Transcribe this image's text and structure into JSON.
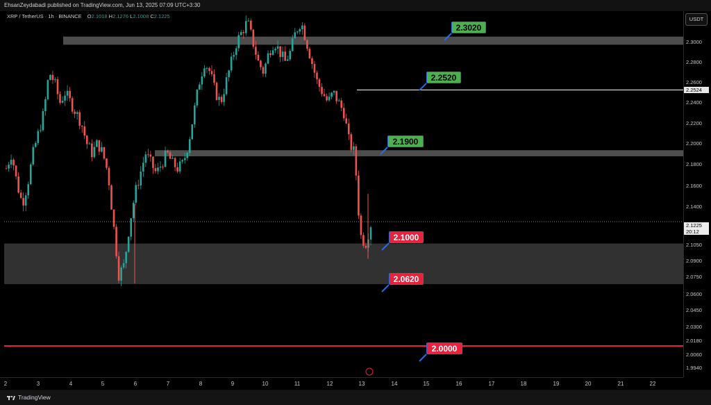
{
  "header": {
    "publisher_text": "EhsanZeydabadi published on TradingView.com, Jun 13, 2025 07:09 UTC+3:30"
  },
  "symbol": {
    "name": "XRP / TetherUS · 1h · BINANCE",
    "o_label": "O",
    "o": "2.1018",
    "h_label": "H",
    "h": "2.1276",
    "l_label": "L",
    "l": "2.1008",
    "c_label": "C",
    "c": "2.1225"
  },
  "price_scale": {
    "currency": "USDT",
    "ticks": [
      "2.3000",
      "2.2800",
      "2.2600",
      "2.2400",
      "2.2200",
      "2.2000",
      "2.1800",
      "2.1600",
      "2.1400",
      "2.1200",
      "2.1050",
      "2.0900",
      "2.0750",
      "2.0600",
      "2.0450",
      "2.0300",
      "2.0180",
      "2.0060",
      "1.9940"
    ],
    "line_tag": "2.2524",
    "last_price": "2.1225",
    "countdown": "20:12"
  },
  "time_scale": {
    "labels": [
      "2",
      "3",
      "4",
      "5",
      "6",
      "7",
      "8",
      "9",
      "10",
      "11",
      "12",
      "13",
      "14",
      "15",
      "16",
      "17",
      "18",
      "19",
      "20",
      "21",
      "22"
    ]
  },
  "footer": {
    "brand": "TradingView"
  },
  "annotations": [
    {
      "text": "2.3020",
      "kind": "resistance",
      "color": "#4caf50"
    },
    {
      "text": "2.2520",
      "kind": "resistance",
      "color": "#4caf50"
    },
    {
      "text": "2.1900",
      "kind": "resistance",
      "color": "#4caf50"
    },
    {
      "text": "2.1000",
      "kind": "support",
      "color": "#e5233d"
    },
    {
      "text": "2.0620",
      "kind": "support",
      "color": "#e5233d"
    },
    {
      "text": "2.0000",
      "kind": "support",
      "color": "#e5233d"
    }
  ],
  "chart_data": {
    "type": "candlestick",
    "ylim": [
      1.99,
      2.325
    ],
    "up_color": "#26a69a",
    "down_color": "#ef5350",
    "zones": [
      {
        "low": 2.297,
        "high": 2.305
      },
      {
        "low": 2.187,
        "high": 2.193
      },
      {
        "low": 2.061,
        "high": 2.101
      }
    ],
    "lines": [
      {
        "value": 2.2524,
        "color": "#ffffff"
      },
      {
        "value": 2.0,
        "color": "#e5233d"
      },
      {
        "value": 2.1225,
        "color": "#888888",
        "style": "dotted"
      }
    ],
    "close_path": [
      2.175,
      2.19,
      2.16,
      2.14,
      2.16,
      2.19,
      2.21,
      2.23,
      2.27,
      2.26,
      2.24,
      2.25,
      2.24,
      2.23,
      2.22,
      2.2,
      2.19,
      2.2,
      2.19,
      2.17,
      2.12,
      2.07,
      2.08,
      2.12,
      2.15,
      2.17,
      2.19,
      2.18,
      2.17,
      2.18,
      2.19,
      2.18,
      2.175,
      2.18,
      2.2,
      2.23,
      2.26,
      2.28,
      2.27,
      2.25,
      2.24,
      2.26,
      2.28,
      2.3,
      2.31,
      2.32,
      2.3,
      2.28,
      2.27,
      2.29,
      2.3,
      2.29,
      2.28,
      2.29,
      2.31,
      2.32,
      2.3,
      2.28,
      2.26,
      2.25,
      2.24,
      2.25,
      2.24,
      2.23,
      2.2,
      2.19,
      2.11,
      2.1,
      2.12
    ]
  }
}
